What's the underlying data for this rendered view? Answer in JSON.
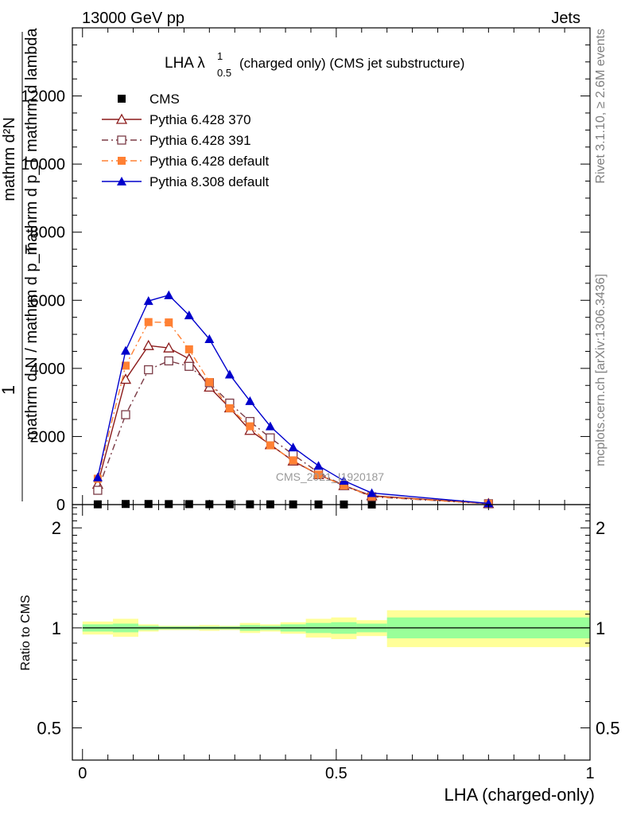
{
  "header": {
    "left": "13000 GeV pp",
    "right": "Jets"
  },
  "side_labels": {
    "rivet": "Rivet 3.1.10, ≥ 2.6M events",
    "mcplots": "mcplots.cern.ch [arXiv:1306.3436]"
  },
  "chart_data": [
    {
      "type": "line",
      "title": {
        "main": "LHA λ",
        "sup": "1",
        "sub": "0.5",
        "suffix": "(charged only) (CMS jet substructure)"
      },
      "watermark": "CMS_2021_I1920187",
      "ylabel_numerator_top": "1",
      "ylabel_numerator": "mathrm d²N",
      "ylabel_denominator": "mathrm d p_T mathrm d lambda",
      "ylabel_prefix": "mathrm d N / mathrm d p_T",
      "ylabel": "1 / (mathrm d N / mathrm d p_T) · mathrm d²N / (mathrm d p_T mathrm d lambda)",
      "xlim": [
        -0.02,
        1.0
      ],
      "ylim": [
        0,
        14000
      ],
      "yticks": [
        0,
        2000,
        4000,
        6000,
        8000,
        10000,
        12000
      ],
      "ytick_labels": [
        "0",
        "2000",
        "4000",
        "6000",
        "8000",
        "10000",
        "12000"
      ],
      "legend_position": "top-left",
      "series": [
        {
          "name": "CMS",
          "color": "#000000",
          "marker": "filled-square",
          "line": "none",
          "x": [
            0.03,
            0.085,
            0.13,
            0.17,
            0.21,
            0.25,
            0.29,
            0.33,
            0.37,
            0.415,
            0.465,
            0.515,
            0.57
          ],
          "y": [
            8,
            18,
            18,
            15,
            14,
            11,
            10,
            9,
            8,
            6,
            5,
            4,
            3
          ]
        },
        {
          "name": "Pythia 6.428 370",
          "color": "#8b1a1a",
          "marker": "open-triangle",
          "line": "solid",
          "x": [
            0.03,
            0.085,
            0.13,
            0.17,
            0.21,
            0.25,
            0.29,
            0.33,
            0.37,
            0.415,
            0.465,
            0.515,
            0.57,
            0.8
          ],
          "y": [
            600,
            3680,
            4670,
            4600,
            4280,
            3450,
            2840,
            2180,
            1760,
            1280,
            880,
            560,
            260,
            30
          ]
        },
        {
          "name": "Pythia 6.428 391",
          "color": "#7b3b46",
          "marker": "open-square",
          "line": "dashdot",
          "x": [
            0.03,
            0.085,
            0.13,
            0.17,
            0.21,
            0.25,
            0.29,
            0.33,
            0.37,
            0.415,
            0.465,
            0.515,
            0.57,
            0.8
          ],
          "y": [
            420,
            2640,
            3960,
            4220,
            4060,
            3580,
            2980,
            2440,
            1960,
            1470,
            940,
            560,
            230,
            25
          ]
        },
        {
          "name": "Pythia 6.428 default",
          "color": "#ff8033",
          "marker": "filled-square",
          "line": "dashdot",
          "x": [
            0.03,
            0.085,
            0.13,
            0.17,
            0.21,
            0.25,
            0.29,
            0.33,
            0.37,
            0.415,
            0.465,
            0.515,
            0.57,
            0.8
          ],
          "y": [
            760,
            4080,
            5360,
            5350,
            4560,
            3600,
            2830,
            2300,
            1740,
            1300,
            880,
            560,
            240,
            25
          ]
        },
        {
          "name": "Pythia 8.308 default",
          "color": "#0000cc",
          "marker": "filled-triangle",
          "line": "solid",
          "x": [
            0.03,
            0.085,
            0.13,
            0.17,
            0.21,
            0.25,
            0.29,
            0.33,
            0.37,
            0.415,
            0.465,
            0.515,
            0.57,
            0.8
          ],
          "y": [
            800,
            4520,
            5980,
            6150,
            5560,
            4860,
            3820,
            3040,
            2300,
            1680,
            1140,
            700,
            340,
            35
          ]
        }
      ]
    },
    {
      "type": "area",
      "ylabel": "Ratio to CMS",
      "xlabel": "LHA (charged-only)",
      "xlim": [
        -0.02,
        1.0
      ],
      "ylim": [
        0.4,
        2.35
      ],
      "log_y": true,
      "xticks": [
        0,
        0.5,
        1
      ],
      "xtick_labels": [
        "0",
        "0.5",
        "1"
      ],
      "yticks": [
        0.5,
        1,
        2
      ],
      "ytick_labels": [
        "0.5",
        "1",
        "2"
      ],
      "reference_line": 1,
      "bands": {
        "outer_color": "#ffff99",
        "inner_color": "#99ff99",
        "bins": [
          {
            "x0": 0.0,
            "x1": 0.06,
            "inner": [
              0.975,
              1.025
            ],
            "outer": [
              0.955,
              1.045
            ]
          },
          {
            "x0": 0.06,
            "x1": 0.11,
            "inner": [
              0.97,
              1.03
            ],
            "outer": [
              0.94,
              1.065
            ]
          },
          {
            "x0": 0.11,
            "x1": 0.15,
            "inner": [
              0.985,
              1.015
            ],
            "outer": [
              0.975,
              1.025
            ]
          },
          {
            "x0": 0.15,
            "x1": 0.19,
            "inner": [
              0.99,
              1.01
            ],
            "outer": [
              0.985,
              1.015
            ]
          },
          {
            "x0": 0.19,
            "x1": 0.23,
            "inner": [
              0.99,
              1.01
            ],
            "outer": [
              0.985,
              1.015
            ]
          },
          {
            "x0": 0.23,
            "x1": 0.27,
            "inner": [
              0.99,
              1.01
            ],
            "outer": [
              0.98,
              1.02
            ]
          },
          {
            "x0": 0.27,
            "x1": 0.31,
            "inner": [
              0.99,
              1.01
            ],
            "outer": [
              0.985,
              1.015
            ]
          },
          {
            "x0": 0.31,
            "x1": 0.35,
            "inner": [
              0.98,
              1.02
            ],
            "outer": [
              0.965,
              1.035
            ]
          },
          {
            "x0": 0.35,
            "x1": 0.39,
            "inner": [
              0.985,
              1.015
            ],
            "outer": [
              0.975,
              1.025
            ]
          },
          {
            "x0": 0.39,
            "x1": 0.44,
            "inner": [
              0.975,
              1.025
            ],
            "outer": [
              0.96,
              1.04
            ]
          },
          {
            "x0": 0.44,
            "x1": 0.49,
            "inner": [
              0.965,
              1.035
            ],
            "outer": [
              0.935,
              1.065
            ]
          },
          {
            "x0": 0.49,
            "x1": 0.54,
            "inner": [
              0.96,
              1.04
            ],
            "outer": [
              0.925,
              1.075
            ]
          },
          {
            "x0": 0.54,
            "x1": 0.6,
            "inner": [
              0.97,
              1.03
            ],
            "outer": [
              0.945,
              1.055
            ]
          },
          {
            "x0": 0.6,
            "x1": 1.0,
            "inner": [
              0.93,
              1.075
            ],
            "outer": [
              0.875,
              1.13
            ]
          }
        ]
      }
    }
  ]
}
